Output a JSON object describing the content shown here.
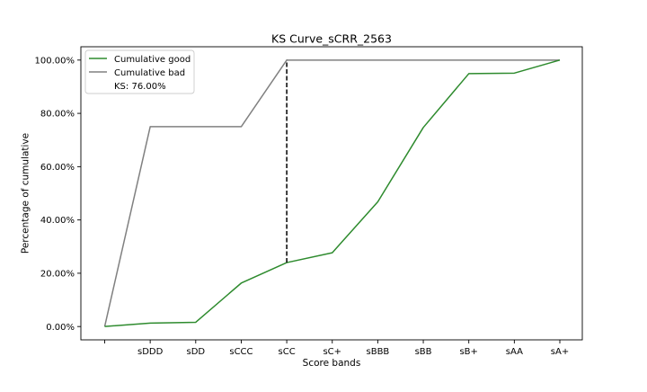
{
  "chart_data": {
    "type": "line",
    "title": "KS Curve_sCRR_2563",
    "xlabel": "Score bands",
    "ylabel": "Percentage of cumulative",
    "categories": [
      "",
      "sDDD",
      "sDD",
      "sCCC",
      "sCC",
      "sC+",
      "sBBB",
      "sBB",
      "sB+",
      "sAA",
      "sA+"
    ],
    "ylim": [
      -0.05,
      1.05
    ],
    "yticks": [
      0.0,
      0.2,
      0.4,
      0.6,
      0.8,
      1.0
    ],
    "ytick_labels": [
      "0.00%",
      "20.00%",
      "40.00%",
      "60.00%",
      "80.00%",
      "100.00%"
    ],
    "series": [
      {
        "name": "Cumulative good",
        "color": "#2e8b2e",
        "values": [
          0.0,
          0.013,
          0.016,
          0.163,
          0.24,
          0.277,
          0.468,
          0.747,
          0.949,
          0.951,
          1.0
        ]
      },
      {
        "name": "Cumulative bad",
        "color": "#808080",
        "values": [
          0.0,
          0.75,
          0.75,
          0.75,
          1.0,
          1.0,
          1.0,
          1.0,
          1.0,
          1.0,
          1.0
        ]
      }
    ],
    "ks_line": {
      "category_index": 4,
      "from": 0.24,
      "to": 1.0,
      "color": "#000000"
    },
    "legend": {
      "placement": "top-left",
      "ks_label": "KS: 76.00%"
    },
    "grid": false
  }
}
